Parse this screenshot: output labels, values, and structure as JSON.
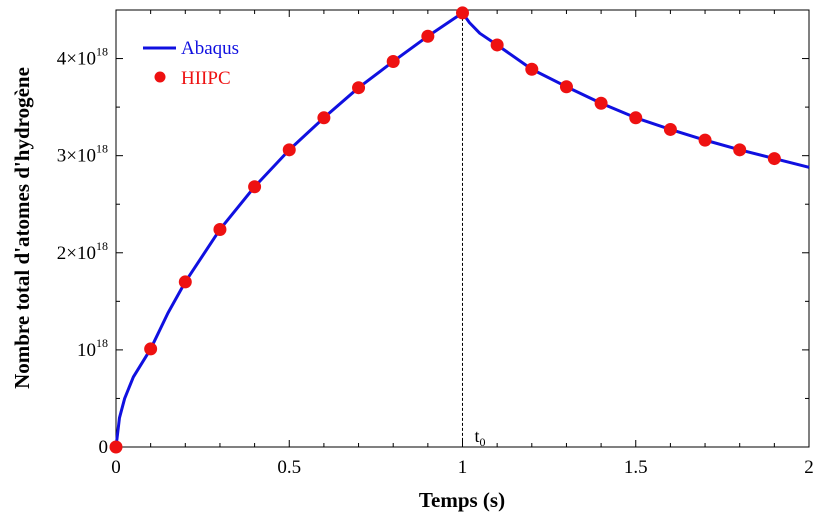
{
  "chart_data": {
    "type": "line",
    "title": "",
    "xlabel": "Temps (s)",
    "ylabel": "Nombre total d'atomes d'hydrogène",
    "xlim": [
      0,
      2
    ],
    "ylim": [
      0,
      4.5e+18
    ],
    "grid": false,
    "legend_position": "top-left",
    "x_ticks": [
      {
        "value": 0,
        "label": "0"
      },
      {
        "value": 0.5,
        "label": "0.5"
      },
      {
        "value": 1,
        "label": "1"
      },
      {
        "value": 1.5,
        "label": "1.5"
      },
      {
        "value": 2,
        "label": "2"
      }
    ],
    "y_ticks": [
      {
        "value": 0,
        "base": "0",
        "exp": ""
      },
      {
        "value": 1e+18,
        "base": "10",
        "exp": "18"
      },
      {
        "value": 2e+18,
        "base": "2×10",
        "exp": "18"
      },
      {
        "value": 3e+18,
        "base": "3×10",
        "exp": "18"
      },
      {
        "value": 4e+18,
        "base": "4×10",
        "exp": "18"
      }
    ],
    "annotation": {
      "x": 1,
      "label_base": "t",
      "label_sub": "0"
    },
    "series": [
      {
        "name": "Abaqus",
        "kind": "line",
        "color": "#1010e0",
        "x": [
          0,
          0.01,
          0.025,
          0.05,
          0.1,
          0.15,
          0.2,
          0.3,
          0.4,
          0.5,
          0.6,
          0.7,
          0.8,
          0.9,
          1.0,
          1.02,
          1.05,
          1.1,
          1.2,
          1.3,
          1.4,
          1.5,
          1.6,
          1.7,
          1.8,
          1.9,
          2.0
        ],
        "y": [
          0,
          3e+17,
          5e+17,
          7.2e+17,
          1.01e+18,
          1.38e+18,
          1.7e+18,
          2.24e+18,
          2.68e+18,
          3.06e+18,
          3.39e+18,
          3.7e+18,
          3.97e+18,
          4.23e+18,
          4.47e+18,
          4.37e+18,
          4.26e+18,
          4.14e+18,
          3.89e+18,
          3.71e+18,
          3.54e+18,
          3.39e+18,
          3.27e+18,
          3.16e+18,
          3.06e+18,
          2.97e+18,
          2.88e+18
        ]
      },
      {
        "name": "HIIPC",
        "kind": "scatter",
        "color": "#ee1111",
        "x": [
          0,
          0.1,
          0.2,
          0.3,
          0.4,
          0.5,
          0.6,
          0.7,
          0.8,
          0.9,
          1.0,
          1.1,
          1.2,
          1.3,
          1.4,
          1.5,
          1.6,
          1.7,
          1.8,
          1.9
        ],
        "y": [
          0,
          1.01e+18,
          1.7e+18,
          2.24e+18,
          2.68e+18,
          3.06e+18,
          3.39e+18,
          3.7e+18,
          3.97e+18,
          4.23e+18,
          4.47e+18,
          4.14e+18,
          3.89e+18,
          3.71e+18,
          3.54e+18,
          3.39e+18,
          3.27e+18,
          3.16e+18,
          3.06e+18,
          2.97e+18
        ]
      }
    ]
  }
}
